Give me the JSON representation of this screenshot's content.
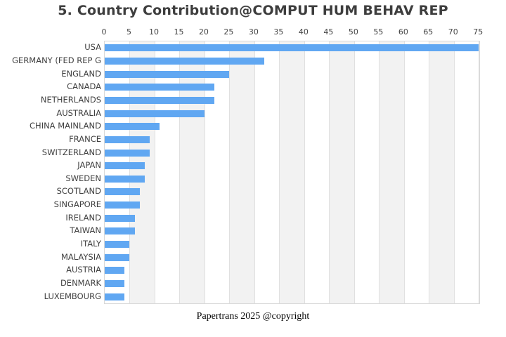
{
  "page": {
    "footer": "Papertrans 2025 @copyright"
  },
  "chart_data": {
    "type": "bar",
    "orientation": "horizontal",
    "title": "5. Country Contribution@COMPUT HUM BEHAV REP",
    "categories": [
      "USA",
      "GERMANY (FED REP G",
      "ENGLAND",
      "CANADA",
      "NETHERLANDS",
      "AUSTRALIA",
      "CHINA MAINLAND",
      "FRANCE",
      "SWITZERLAND",
      "JAPAN",
      "SWEDEN",
      "SCOTLAND",
      "SINGAPORE",
      "IRELAND",
      "TAIWAN",
      "ITALY",
      "MALAYSIA",
      "AUSTRIA",
      "DENMARK",
      "LUXEMBOURG"
    ],
    "values": [
      75,
      32,
      25,
      22,
      22,
      20,
      11,
      9,
      9,
      8,
      8,
      7,
      7,
      6,
      6,
      5,
      5,
      4,
      4,
      4
    ],
    "xlabel": "",
    "ylabel": "",
    "xlim": [
      0,
      75.1
    ],
    "xticks": [
      0,
      5,
      10,
      15,
      20,
      25,
      30,
      35,
      40,
      45,
      50,
      55,
      60,
      65,
      70,
      75
    ],
    "axis_position": "top",
    "legend": "none",
    "grid": true,
    "band_step": 5,
    "colors": {
      "bar": "#60a7f2",
      "band_gray": "#f2f2f2",
      "band_white": "#ffffff",
      "grid_line": "#e0e0e0",
      "plot_border": "#d9d9d9",
      "title_text": "#3d3d3d",
      "axis_text": "#444444"
    }
  }
}
